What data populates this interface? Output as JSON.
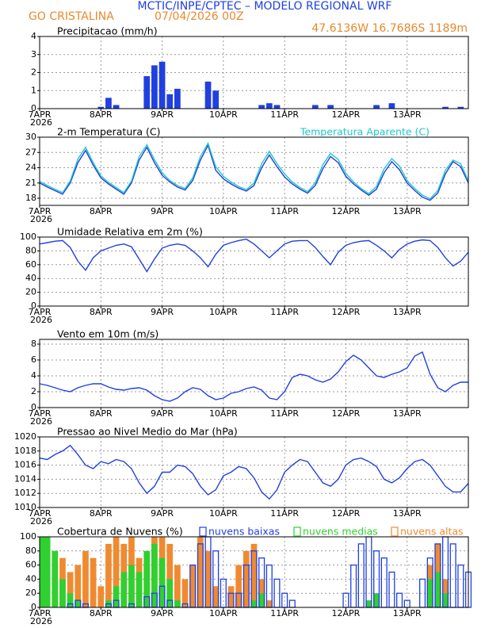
{
  "header": {
    "title": "MCTIC/INPE/CPTEC – MODELO REGIONAL WRF",
    "location": "GO CRISTALINA",
    "run": "07/04/2026 00Z",
    "coords": "47.6136W  16.7686S  1189m"
  },
  "chart_data": [
    {
      "type": "bar",
      "title": "Precipitacao (mm/h)",
      "year_label": "2026",
      "grid": true,
      "color": "#2040e0",
      "x": [
        0,
        3,
        6,
        9,
        12,
        15,
        18,
        21,
        24,
        27,
        30,
        33,
        36,
        39,
        42,
        45,
        48,
        51,
        54,
        57,
        60,
        63,
        66,
        69,
        72,
        75,
        78,
        81,
        84,
        87,
        90,
        93,
        96,
        99,
        102,
        105,
        108,
        111,
        114,
        117,
        120,
        123,
        126,
        129,
        132,
        135,
        138,
        141,
        144,
        147,
        150,
        153,
        156,
        159,
        162,
        165,
        168
      ],
      "values": [
        0,
        0,
        0,
        0,
        0,
        0,
        0,
        0,
        0.1,
        0.6,
        0.2,
        0,
        0,
        0,
        1.8,
        2.4,
        2.6,
        0.8,
        1.1,
        0,
        0,
        0,
        1.5,
        1.0,
        0,
        0,
        0,
        0,
        0,
        0.2,
        0.3,
        0.2,
        0,
        0,
        0,
        0,
        0.2,
        0,
        0.2,
        0,
        0,
        0,
        0,
        0,
        0.2,
        0,
        0.3,
        0,
        0,
        0,
        0,
        0,
        0,
        0.1,
        0,
        0.1,
        0
      ],
      "xlim": [
        0,
        168
      ],
      "xticks": [
        {
          "value": 0,
          "label": "7APR"
        },
        {
          "value": 24,
          "label": "8APR"
        },
        {
          "value": 48,
          "label": "9APR"
        },
        {
          "value": 72,
          "label": "10APR"
        },
        {
          "value": 96,
          "label": "11APR"
        },
        {
          "value": 120,
          "label": "12APR"
        },
        {
          "value": 144,
          "label": "13APR"
        }
      ],
      "ylim": [
        0,
        4
      ],
      "yticks": [
        0,
        1,
        2,
        3,
        4
      ]
    },
    {
      "type": "line",
      "title": "2-m Temperatura (C)",
      "year_label": "2026",
      "grid": true,
      "legend": "top-right",
      "x": [
        0,
        3,
        6,
        9,
        12,
        15,
        18,
        21,
        24,
        27,
        30,
        33,
        36,
        39,
        42,
        45,
        48,
        51,
        54,
        57,
        60,
        63,
        66,
        69,
        72,
        75,
        78,
        81,
        84,
        87,
        90,
        93,
        96,
        99,
        102,
        105,
        108,
        111,
        114,
        117,
        120,
        123,
        126,
        129,
        132,
        135,
        138,
        141,
        144,
        147,
        150,
        153,
        156,
        159,
        162,
        165,
        168
      ],
      "series": [
        {
          "color": "#2040e0",
          "values": [
            21,
            20.2,
            19.5,
            18.8,
            21,
            25,
            27.4,
            24.5,
            22,
            20.8,
            19.8,
            18.8,
            21,
            25.5,
            28,
            25,
            22.5,
            21.2,
            20.2,
            19.6,
            21.5,
            25.5,
            28.4,
            23.5,
            21.8,
            20.8,
            20,
            19.4,
            20.5,
            24,
            26.5,
            24.2,
            22.2,
            20.8,
            19.8,
            19,
            20.5,
            23.8,
            26.2,
            25,
            22.3,
            20.8,
            19.6,
            18.6,
            19.8,
            23,
            25.2,
            23.6,
            21,
            19.5,
            18.2,
            17.6,
            19,
            22.8,
            25.2,
            24.2,
            21
          ]
        },
        {
          "name": "Temperatura Aparente (C)",
          "color": "#20c8c8",
          "values": [
            21.3,
            20.5,
            19.8,
            19.1,
            21.4,
            25.7,
            28,
            25,
            22.4,
            21.1,
            20.1,
            19.1,
            21.4,
            26.2,
            28.5,
            25.6,
            23,
            21.5,
            20.5,
            19.9,
            22,
            26.2,
            28.8,
            24.2,
            22.3,
            21.2,
            20.3,
            19.7,
            21,
            24.8,
            27.2,
            24.8,
            22.8,
            21.2,
            20.1,
            19.3,
            21,
            24.6,
            26.8,
            25.6,
            22.9,
            21.2,
            19.9,
            18.9,
            20.3,
            23.8,
            25.8,
            24.3,
            21.5,
            19.9,
            18.6,
            17.9,
            19.5,
            23.5,
            25.5,
            24.8,
            21.4
          ]
        }
      ],
      "xlim": [
        0,
        168
      ],
      "xticks": [
        {
          "value": 0,
          "label": "7APR"
        },
        {
          "value": 24,
          "label": "8APR"
        },
        {
          "value": 48,
          "label": "9APR"
        },
        {
          "value": 72,
          "label": "10APR"
        },
        {
          "value": 96,
          "label": "11APR"
        },
        {
          "value": 120,
          "label": "12APR"
        },
        {
          "value": 144,
          "label": "13APR"
        }
      ],
      "ylim": [
        16.6,
        30
      ],
      "yticks": [
        18,
        21,
        24,
        27,
        30
      ]
    },
    {
      "type": "line",
      "title": "Umidade Relativa em 2m (%)",
      "year_label": "2026",
      "grid": true,
      "x": [
        0,
        3,
        6,
        9,
        12,
        15,
        18,
        21,
        24,
        27,
        30,
        33,
        36,
        39,
        42,
        45,
        48,
        51,
        54,
        57,
        60,
        63,
        66,
        69,
        72,
        75,
        78,
        81,
        84,
        87,
        90,
        93,
        96,
        99,
        102,
        105,
        108,
        111,
        114,
        117,
        120,
        123,
        126,
        129,
        132,
        135,
        138,
        141,
        144,
        147,
        150,
        153,
        156,
        159,
        162,
        165,
        168
      ],
      "series": [
        {
          "color": "#2040e0",
          "values": [
            90,
            92,
            94,
            95,
            85,
            65,
            52,
            70,
            80,
            84,
            88,
            90,
            86,
            68,
            50,
            68,
            84,
            88,
            90,
            88,
            80,
            70,
            57,
            75,
            88,
            92,
            95,
            97,
            90,
            80,
            70,
            80,
            90,
            94,
            95,
            95,
            85,
            72,
            60,
            78,
            88,
            92,
            94,
            95,
            88,
            80,
            70,
            82,
            90,
            94,
            96,
            95,
            85,
            70,
            58,
            65,
            78
          ]
        }
      ],
      "xlim": [
        0,
        168
      ],
      "xticks": [
        {
          "value": 0,
          "label": "7APR"
        },
        {
          "value": 24,
          "label": "8APR"
        },
        {
          "value": 48,
          "label": "9APR"
        },
        {
          "value": 72,
          "label": "10APR"
        },
        {
          "value": 96,
          "label": "11APR"
        },
        {
          "value": 120,
          "label": "12APR"
        },
        {
          "value": 144,
          "label": "13APR"
        }
      ],
      "ylim": [
        0,
        100
      ],
      "yticks": [
        0,
        20,
        40,
        60,
        80,
        100
      ]
    },
    {
      "type": "line",
      "title": "Vento em 10m (m/s)",
      "year_label": "2026",
      "grid": true,
      "x": [
        0,
        3,
        6,
        9,
        12,
        15,
        18,
        21,
        24,
        27,
        30,
        33,
        36,
        39,
        42,
        45,
        48,
        51,
        54,
        57,
        60,
        63,
        66,
        69,
        72,
        75,
        78,
        81,
        84,
        87,
        90,
        93,
        96,
        99,
        102,
        105,
        108,
        111,
        114,
        117,
        120,
        123,
        126,
        129,
        132,
        135,
        138,
        141,
        144,
        147,
        150,
        153,
        156,
        159,
        162,
        165,
        168
      ],
      "series": [
        {
          "color": "#2040e0",
          "values": [
            3,
            2.8,
            2.5,
            2.2,
            2,
            2.5,
            2.8,
            3,
            3,
            2.6,
            2.3,
            2.2,
            2.4,
            2.5,
            2.2,
            1.5,
            1,
            0.8,
            1.2,
            2,
            2.5,
            2.3,
            1.5,
            1,
            1.2,
            1.8,
            2,
            2.4,
            2.6,
            2.2,
            1.2,
            1,
            2,
            3.8,
            4.2,
            4,
            3.5,
            3.2,
            3.6,
            4.5,
            5.8,
            6.6,
            6,
            5,
            4,
            3.8,
            4.2,
            4.5,
            5,
            6.5,
            7,
            4.2,
            2.5,
            2,
            2.8,
            3.2,
            3.2
          ]
        }
      ],
      "xlim": [
        0,
        168
      ],
      "xticks": [
        {
          "value": 0,
          "label": "7APR"
        },
        {
          "value": 24,
          "label": "8APR"
        },
        {
          "value": 48,
          "label": "9APR"
        },
        {
          "value": 72,
          "label": "10APR"
        },
        {
          "value": 96,
          "label": "11APR"
        },
        {
          "value": 120,
          "label": "12APR"
        },
        {
          "value": 144,
          "label": "13APR"
        }
      ],
      "ylim": [
        0,
        8.6
      ],
      "yticks": [
        0,
        2,
        4,
        6,
        8
      ]
    },
    {
      "type": "line",
      "title": "Pressao ao Nivel Medio do Mar (hPa)",
      "year_label": "2026",
      "grid": true,
      "x": [
        0,
        3,
        6,
        9,
        12,
        15,
        18,
        21,
        24,
        27,
        30,
        33,
        36,
        39,
        42,
        45,
        48,
        51,
        54,
        57,
        60,
        63,
        66,
        69,
        72,
        75,
        78,
        81,
        84,
        87,
        90,
        93,
        96,
        99,
        102,
        105,
        108,
        111,
        114,
        117,
        120,
        123,
        126,
        129,
        132,
        135,
        138,
        141,
        144,
        147,
        150,
        153,
        156,
        159,
        162,
        165,
        168
      ],
      "series": [
        {
          "color": "#2040e0",
          "values": [
            1017,
            1016.8,
            1017.5,
            1018,
            1018.8,
            1017.5,
            1016,
            1015.5,
            1016.5,
            1016.2,
            1016.8,
            1016.5,
            1015.5,
            1013.5,
            1012,
            1013,
            1015,
            1015,
            1016,
            1015.8,
            1014.8,
            1013,
            1011.8,
            1012.5,
            1014.5,
            1015,
            1015.8,
            1015.5,
            1014.2,
            1012.2,
            1011.2,
            1012.5,
            1015,
            1016,
            1016.8,
            1016.5,
            1015,
            1013.5,
            1013,
            1014,
            1016,
            1016.8,
            1017,
            1016.5,
            1015.8,
            1014,
            1013.5,
            1014.2,
            1015.5,
            1016.5,
            1016.8,
            1016,
            1014.5,
            1013,
            1012.2,
            1012.2,
            1013.4
          ]
        }
      ],
      "xlim": [
        0,
        168
      ],
      "xticks": [
        {
          "value": 0,
          "label": "7APR"
        },
        {
          "value": 24,
          "label": "8APR"
        },
        {
          "value": 48,
          "label": "9APR"
        },
        {
          "value": 72,
          "label": "10APR"
        },
        {
          "value": 96,
          "label": "11APR"
        },
        {
          "value": 120,
          "label": "12APR"
        },
        {
          "value": 144,
          "label": "13APR"
        }
      ],
      "ylim": [
        1010,
        1020
      ],
      "yticks": [
        1010,
        1012,
        1014,
        1016,
        1018,
        1020
      ]
    },
    {
      "type": "bar",
      "title": "Cobertura de Nuvens (%)",
      "year_label": "2026",
      "grid": true,
      "legend": "top",
      "x": [
        0,
        3,
        6,
        9,
        12,
        15,
        18,
        21,
        24,
        27,
        30,
        33,
        36,
        39,
        42,
        45,
        48,
        51,
        54,
        57,
        60,
        63,
        66,
        69,
        72,
        75,
        78,
        81,
        84,
        87,
        90,
        93,
        96,
        99,
        102,
        105,
        108,
        111,
        114,
        117,
        120,
        123,
        126,
        129,
        132,
        135,
        138,
        141,
        144,
        147,
        150,
        153,
        156,
        159,
        162,
        165,
        168
      ],
      "series": [
        {
          "name": "nuvens altas",
          "color": "#f08a30",
          "outline": false,
          "values": [
            90,
            80,
            60,
            70,
            50,
            60,
            80,
            70,
            30,
            90,
            100,
            90,
            100,
            70,
            60,
            100,
            100,
            90,
            60,
            40,
            60,
            100,
            80,
            30,
            0,
            30,
            60,
            80,
            90,
            40,
            10,
            0,
            0,
            0,
            0,
            0,
            0,
            0,
            0,
            0,
            0,
            0,
            0,
            0,
            10,
            0,
            0,
            0,
            0,
            0,
            0,
            60,
            90,
            40,
            0,
            0,
            0
          ]
        },
        {
          "name": "nuvens medias",
          "color": "#30d030",
          "outline": false,
          "values": [
            100,
            100,
            80,
            40,
            20,
            10,
            0,
            0,
            0,
            10,
            30,
            50,
            60,
            50,
            80,
            90,
            70,
            40,
            10,
            0,
            0,
            0,
            0,
            0,
            0,
            0,
            0,
            0,
            10,
            20,
            0,
            0,
            0,
            0,
            0,
            0,
            0,
            0,
            0,
            0,
            0,
            0,
            0,
            10,
            20,
            0,
            0,
            0,
            0,
            0,
            0,
            40,
            50,
            20,
            0,
            0,
            0
          ]
        },
        {
          "name": "nuvens baixas",
          "color": "#2040e0",
          "outline": true,
          "values": [
            0,
            0,
            0,
            0,
            5,
            10,
            5,
            0,
            0,
            5,
            10,
            0,
            5,
            0,
            15,
            20,
            30,
            10,
            0,
            5,
            60,
            90,
            100,
            80,
            40,
            20,
            20,
            60,
            80,
            70,
            60,
            40,
            20,
            10,
            0,
            0,
            0,
            0,
            0,
            0,
            20,
            60,
            90,
            100,
            80,
            70,
            50,
            20,
            10,
            0,
            40,
            70,
            90,
            100,
            90,
            60,
            50
          ]
        }
      ],
      "xlim": [
        0,
        168
      ],
      "xticks": [
        {
          "value": 0,
          "label": "7APR"
        },
        {
          "value": 24,
          "label": "8APR"
        },
        {
          "value": 48,
          "label": "9APR"
        },
        {
          "value": 72,
          "label": "10APR"
        },
        {
          "value": 96,
          "label": "11APR"
        },
        {
          "value": 120,
          "label": "12APR"
        },
        {
          "value": 144,
          "label": "13APR"
        }
      ],
      "ylim": [
        0,
        100
      ],
      "yticks": [
        0,
        20,
        40,
        60,
        80,
        100
      ]
    }
  ]
}
